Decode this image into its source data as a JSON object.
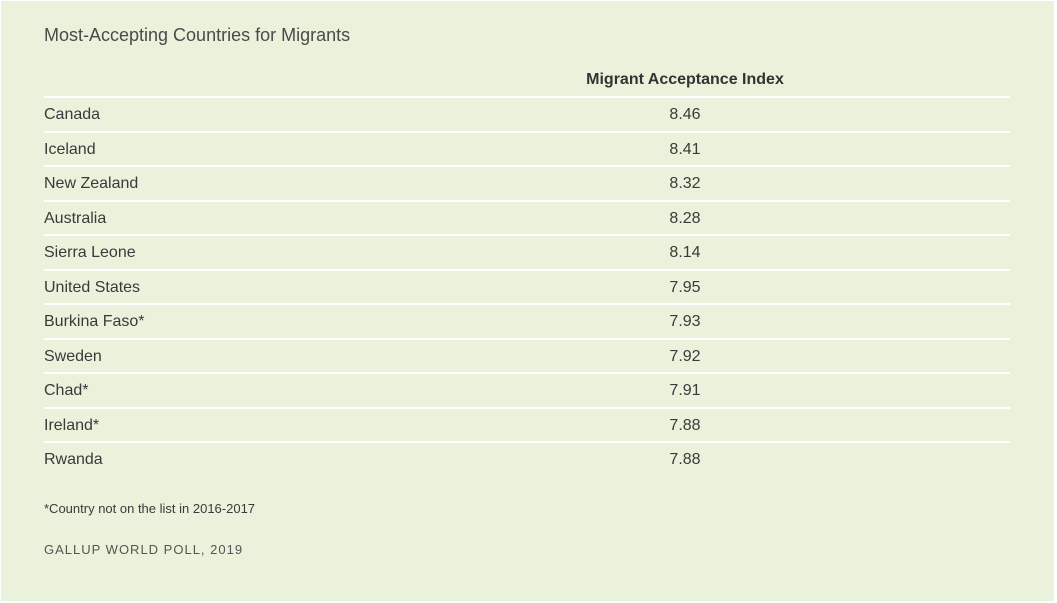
{
  "title": "Most-Accepting Countries for Migrants",
  "footnote": "*Country not on the list in 2016-2017",
  "source": "GALLUP WORLD POLL, 2019",
  "chart_data": {
    "type": "table",
    "title": "Most-Accepting Countries for Migrants",
    "columns": [
      "",
      "Migrant Acceptance Index"
    ],
    "rows": [
      {
        "country": "Canada",
        "value": "8.46"
      },
      {
        "country": "Iceland",
        "value": "8.41"
      },
      {
        "country": "New Zealand",
        "value": "8.32"
      },
      {
        "country": "Australia",
        "value": "8.28"
      },
      {
        "country": "Sierra Leone",
        "value": "8.14"
      },
      {
        "country": "United States",
        "value": "7.95"
      },
      {
        "country": "Burkina Faso*",
        "value": "7.93"
      },
      {
        "country": "Sweden",
        "value": "7.92"
      },
      {
        "country": "Chad*",
        "value": "7.91"
      },
      {
        "country": "Ireland*",
        "value": "7.88"
      },
      {
        "country": "Rwanda",
        "value": "7.88"
      }
    ]
  }
}
